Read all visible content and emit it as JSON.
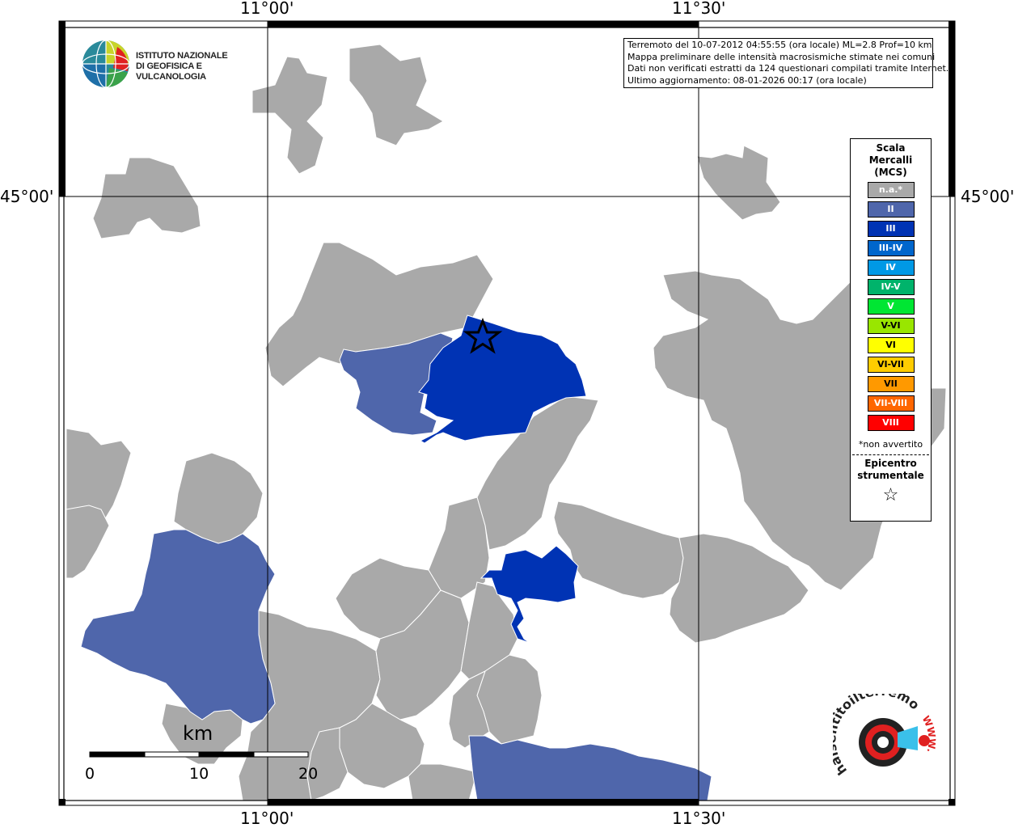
{
  "map": {
    "lon_labels": [
      "11°00'",
      "11°30'"
    ],
    "lat_labels": [
      "45°00'"
    ]
  },
  "logo": {
    "line1": "ISTITUTO NAZIONALE",
    "line2": "DI GEOFISICA E VULCANOLOGIA"
  },
  "info": {
    "line1": "Terremoto del 10-07-2012 04:55:55 (ora locale) ML=2.8 Prof=10 km",
    "line2": "Mappa preliminare delle intensità macrosismiche stimate nei comuni",
    "line3": "Dati non verificati estratti da 124 questionari compilati tramite Internet.",
    "line4": "Ultimo aggiornamento: 08-01-2026 00:17 (ora locale)"
  },
  "legend": {
    "title": [
      "Scala",
      "Mercalli",
      "(MCS)"
    ],
    "items": [
      {
        "label": "n.a.*",
        "color": "#a9a9a9"
      },
      {
        "label": "II",
        "color": "#4f66ab"
      },
      {
        "label": "III",
        "color": "#0033b4"
      },
      {
        "label": "III-IV",
        "color": "#0066cc"
      },
      {
        "label": "IV",
        "color": "#0099e5"
      },
      {
        "label": "IV-V",
        "color": "#00b36b"
      },
      {
        "label": "V",
        "color": "#00e633"
      },
      {
        "label": "V-VI",
        "color": "#99e600"
      },
      {
        "label": "VI",
        "color": "#ffff00"
      },
      {
        "label": "VI-VII",
        "color": "#ffcc00"
      },
      {
        "label": "VII",
        "color": "#ff9900"
      },
      {
        "label": "VII-VIII",
        "color": "#ff6600"
      },
      {
        "label": "VIII",
        "color": "#ff0000"
      }
    ],
    "note": "*non avvertito",
    "epicentre": [
      "Epicentro",
      "strumentale"
    ],
    "star": "☆"
  },
  "scalebar": {
    "unit": "km",
    "ticks": [
      "0",
      "10",
      "20"
    ]
  },
  "branding": {
    "text": "haisentitoilterremoto.it",
    "www": "WWW."
  },
  "colors": {
    "na": "#a9a9a9",
    "ii": "#4f66ab",
    "iii": "#0033b4",
    "border": "#ffffff"
  }
}
